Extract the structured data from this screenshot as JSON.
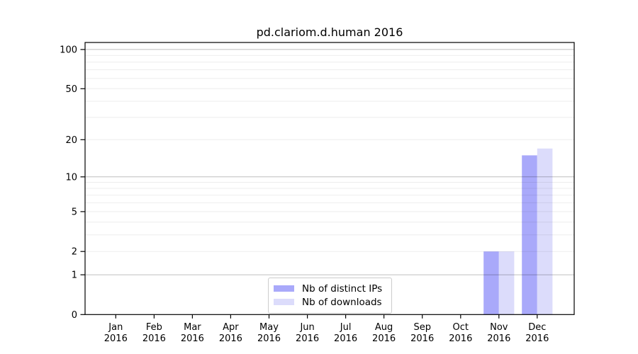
{
  "chart_data": {
    "type": "bar",
    "title": "pd.clariom.d.human 2016",
    "categories": [
      "Jan",
      "Feb",
      "Mar",
      "Apr",
      "May",
      "Jun",
      "Jul",
      "Aug",
      "Sep",
      "Oct",
      "Nov",
      "Dec"
    ],
    "year": "2016",
    "series": [
      {
        "name": "Nb of distinct IPs",
        "color": "#a9a9fa",
        "values": [
          0,
          0,
          0,
          0,
          0,
          0,
          0,
          0,
          0,
          0,
          2,
          15
        ]
      },
      {
        "name": "Nb of downloads",
        "color": "#dcdcfb",
        "values": [
          0,
          0,
          0,
          0,
          0,
          0,
          0,
          0,
          0,
          0,
          2,
          17
        ]
      }
    ],
    "y_axis": {
      "scale": "log1p",
      "ticks": [
        0,
        1,
        2,
        5,
        10,
        20,
        50,
        100
      ],
      "ylim": [
        0,
        113
      ]
    },
    "x_axis": {
      "tick_label_format": "month over year"
    },
    "grid": {
      "major": [
        1,
        10,
        100
      ],
      "minor": [
        2,
        3,
        4,
        5,
        6,
        7,
        8,
        9,
        20,
        30,
        40,
        50,
        60,
        70,
        80,
        90
      ]
    },
    "legend": {
      "position": "lower center",
      "entries": [
        "Nb of distinct IPs",
        "Nb of downloads"
      ]
    }
  }
}
